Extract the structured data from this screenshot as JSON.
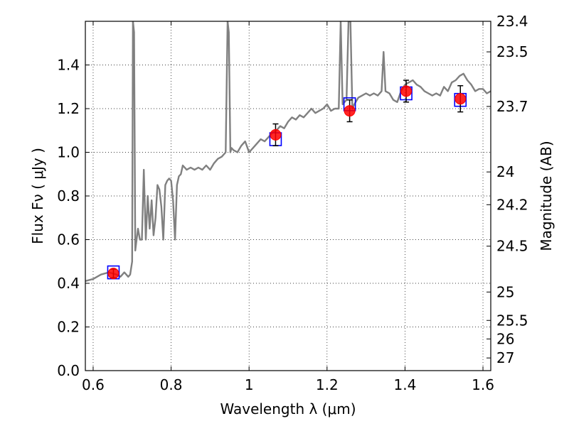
{
  "chart_data": {
    "type": "line",
    "title": "",
    "xlabel": "Wavelength  λ (μm)",
    "ylabel": "Flux  Fν ( μJy )",
    "ylabel_right": "Magnitude (AB)",
    "xlim": [
      0.58,
      1.62
    ],
    "ylim": [
      0.0,
      1.6
    ],
    "grid": true,
    "x_ticks": [
      0.6,
      0.8,
      1.0,
      1.2,
      1.4,
      1.6
    ],
    "x_tick_labels": [
      "0.6",
      "0.8",
      "1",
      "1.2",
      "1.4",
      "1.6"
    ],
    "y_ticks": [
      0.0,
      0.2,
      0.4,
      0.6,
      0.8,
      1.0,
      1.2,
      1.4
    ],
    "y_tick_labels": [
      "0.0",
      "0.2",
      "0.4",
      "0.6",
      "0.8",
      "1.0",
      "1.2",
      "1.4"
    ],
    "right_ticks": [
      {
        "flux": 1.6,
        "label": "23.4"
      },
      {
        "flux": 1.46,
        "label": "23.5"
      },
      {
        "flux": 1.21,
        "label": "23.7"
      },
      {
        "flux": 0.91,
        "label": "24"
      },
      {
        "flux": 0.76,
        "label": "24.2"
      },
      {
        "flux": 0.57,
        "label": "24.5"
      },
      {
        "flux": 0.36,
        "label": "25"
      },
      {
        "flux": 0.23,
        "label": "25.5"
      },
      {
        "flux": 0.145,
        "label": "26"
      },
      {
        "flux": 0.058,
        "label": "27"
      }
    ],
    "series": [
      {
        "name": "model spectrum",
        "kind": "line",
        "color": "#808080",
        "x": [
          0.58,
          0.6,
          0.62,
          0.64,
          0.66,
          0.67,
          0.68,
          0.69,
          0.695,
          0.7,
          0.702,
          0.705,
          0.708,
          0.71,
          0.715,
          0.72,
          0.725,
          0.73,
          0.735,
          0.74,
          0.745,
          0.75,
          0.755,
          0.76,
          0.765,
          0.77,
          0.775,
          0.78,
          0.785,
          0.79,
          0.795,
          0.8,
          0.805,
          0.81,
          0.815,
          0.82,
          0.825,
          0.83,
          0.84,
          0.85,
          0.86,
          0.87,
          0.88,
          0.89,
          0.9,
          0.91,
          0.92,
          0.93,
          0.94,
          0.945,
          0.948,
          0.952,
          0.955,
          0.96,
          0.97,
          0.98,
          0.99,
          1.0,
          1.01,
          1.02,
          1.03,
          1.04,
          1.05,
          1.06,
          1.07,
          1.08,
          1.09,
          1.1,
          1.11,
          1.12,
          1.13,
          1.14,
          1.15,
          1.16,
          1.17,
          1.18,
          1.19,
          1.2,
          1.21,
          1.22,
          1.23,
          1.235,
          1.24,
          1.25,
          1.255,
          1.26,
          1.265,
          1.27,
          1.28,
          1.29,
          1.3,
          1.31,
          1.32,
          1.33,
          1.34,
          1.345,
          1.35,
          1.36,
          1.37,
          1.38,
          1.39,
          1.4,
          1.41,
          1.42,
          1.43,
          1.44,
          1.45,
          1.46,
          1.47,
          1.48,
          1.49,
          1.5,
          1.51,
          1.52,
          1.53,
          1.54,
          1.55,
          1.56,
          1.57,
          1.58,
          1.59,
          1.6,
          1.61,
          1.62
        ],
        "y": [
          0.41,
          0.42,
          0.44,
          0.45,
          0.44,
          0.43,
          0.45,
          0.43,
          0.44,
          0.5,
          1.6,
          1.55,
          0.55,
          0.58,
          0.65,
          0.6,
          0.6,
          0.92,
          0.6,
          0.8,
          0.65,
          0.78,
          0.62,
          0.7,
          0.85,
          0.83,
          0.75,
          0.6,
          0.85,
          0.87,
          0.88,
          0.87,
          0.78,
          0.6,
          0.85,
          0.89,
          0.9,
          0.94,
          0.92,
          0.93,
          0.92,
          0.93,
          0.92,
          0.94,
          0.92,
          0.95,
          0.97,
          0.98,
          1.0,
          1.6,
          1.55,
          1.0,
          1.02,
          1.01,
          1.0,
          1.03,
          1.05,
          1.0,
          1.02,
          1.04,
          1.06,
          1.05,
          1.07,
          1.09,
          1.1,
          1.12,
          1.11,
          1.14,
          1.16,
          1.15,
          1.17,
          1.16,
          1.18,
          1.2,
          1.18,
          1.19,
          1.2,
          1.22,
          1.19,
          1.2,
          1.2,
          1.6,
          1.22,
          1.24,
          1.6,
          1.6,
          1.2,
          1.22,
          1.25,
          1.26,
          1.27,
          1.26,
          1.27,
          1.26,
          1.28,
          1.46,
          1.28,
          1.27,
          1.24,
          1.23,
          1.28,
          1.31,
          1.32,
          1.33,
          1.31,
          1.3,
          1.28,
          1.27,
          1.26,
          1.27,
          1.26,
          1.3,
          1.28,
          1.32,
          1.33,
          1.35,
          1.36,
          1.33,
          1.31,
          1.28,
          1.29,
          1.29,
          1.27,
          1.28
        ]
      },
      {
        "name": "model photometry",
        "kind": "open-square",
        "color": "#0000ff",
        "x": [
          0.652,
          1.068,
          1.258,
          1.403,
          1.542
        ],
        "y": [
          0.45,
          1.06,
          1.22,
          1.27,
          1.24
        ]
      },
      {
        "name": "observed photometry",
        "kind": "filled-circle",
        "color": "#ff0000",
        "x": [
          0.652,
          1.068,
          1.258,
          1.403,
          1.542
        ],
        "y": [
          0.445,
          1.08,
          1.19,
          1.28,
          1.245
        ],
        "yerr": [
          0.02,
          0.05,
          0.05,
          0.05,
          0.06
        ]
      }
    ]
  }
}
